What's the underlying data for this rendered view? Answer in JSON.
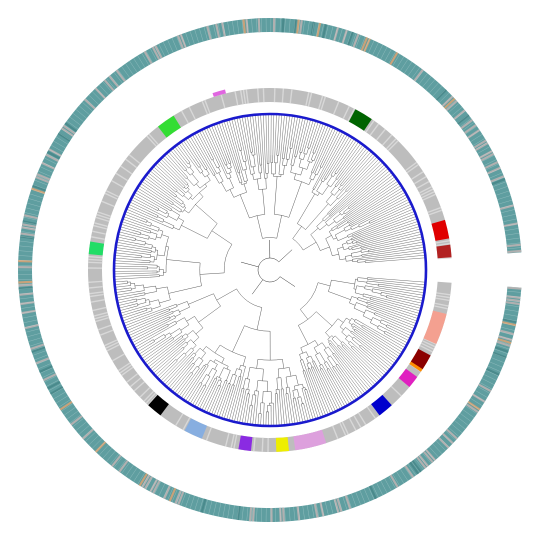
{
  "figure": {
    "type": "circular-phylogenetic-tree",
    "colors": {
      "background": "#ffffff",
      "outer_ring_base": "#5f9ea0",
      "inner_ring_base": "#bdbdbd",
      "tip_circle": "#1a1acd",
      "branch": "#333333"
    },
    "inner_ring_highlights": [
      {
        "color": "#33dd33",
        "label": "green"
      },
      {
        "color": "#e066e0",
        "label": "pink"
      },
      {
        "color": "#006400",
        "label": "dark-green"
      },
      {
        "color": "#e00000",
        "label": "red"
      },
      {
        "color": "#b22222",
        "label": "dark-red"
      },
      {
        "color": "#f4a090",
        "label": "salmon"
      },
      {
        "color": "#ff8c00",
        "label": "orange"
      },
      {
        "color": "#8b0000",
        "label": "maroon"
      },
      {
        "color": "#e020c0",
        "label": "magenta"
      },
      {
        "color": "#0000cd",
        "label": "blue"
      },
      {
        "color": "#dda0dd",
        "label": "plum"
      },
      {
        "color": "#eeee00",
        "label": "yellow"
      },
      {
        "color": "#8a2be2",
        "label": "violet"
      },
      {
        "color": "#87aee0",
        "label": "light-blue"
      },
      {
        "color": "#000000",
        "label": "black"
      },
      {
        "color": "#22dd66",
        "label": "spring-green"
      }
    ],
    "outer_ring_accents": [
      {
        "color": "#c8a27a",
        "label": "tan"
      },
      {
        "color": "#b0b0b0",
        "label": "grey"
      }
    ]
  }
}
